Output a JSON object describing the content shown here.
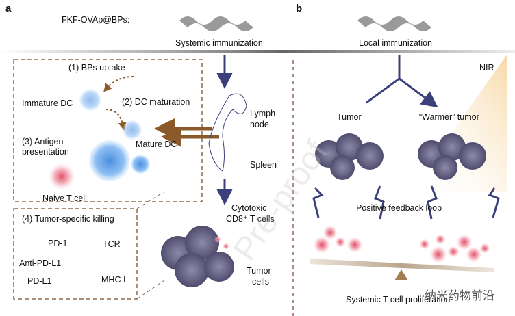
{
  "panels": {
    "a": "a",
    "b": "b"
  },
  "left": {
    "formulation_label": "FKF-OVAp@BPs:",
    "route": "Systemic immunization",
    "steps": {
      "uptake": "(1) BPs uptake",
      "immature_dc": "Immature DC",
      "maturation": "(2) DC maturation",
      "mature_dc": "Mature DC",
      "antigen_1": "(3) Antigen",
      "antigen_2": "presentation",
      "naive_t": "Naive T cell",
      "killing": "(4) Tumor-specific killing",
      "pd1": "PD-1",
      "tcr": "TCR",
      "anti_pdl1": "Anti-PD-L1",
      "mhc": "MHC I",
      "pdl1": "PD-L1"
    },
    "organs": {
      "lymph_1": "Lymph",
      "lymph_2": "node",
      "spleen": "Spleen"
    },
    "ctl_1": "Cytotoxic",
    "ctl_2": "CD8⁺ T cells",
    "tumor_1": "Tumor",
    "tumor_2": "cells"
  },
  "right": {
    "route": "Local immunization",
    "nir": "NIR",
    "tumor": "Tumor",
    "warmer_tumor": "“Warmer” tumor",
    "feedback": "Positive feedback loop",
    "proliferation": "Systemic T cell proliferation"
  },
  "watermarks": {
    "preproof": "Pre-proof",
    "source": "纳米药物前沿"
  },
  "colors": {
    "arrow": "#3b3f7a",
    "brown": "#8b5a2b",
    "dc": "#6aa8ec",
    "tcell": "#e56a7a",
    "tumor": "#6f6c8f"
  }
}
